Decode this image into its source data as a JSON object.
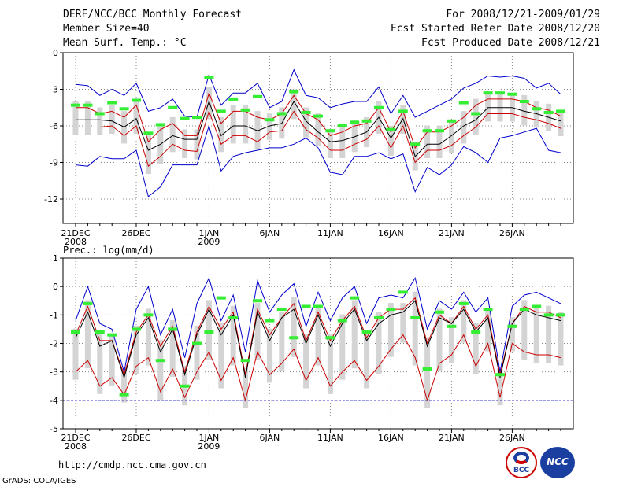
{
  "header": {
    "title": "DERF/NCC/BCC Monthly Forecast",
    "member_size": "Member Size=40",
    "variable1": "Mean Surf. Temp.: °C",
    "period": "For 2008/12/21-2009/01/29",
    "start": "Fcst Started Refer Date 2008/12/20",
    "produced": "Fcst Produced Date 2008/12/21"
  },
  "footer": {
    "url": "http://cmdp.ncc.cma.gov.cn",
    "grads": "GrADS: COLA/IGES",
    "logo_bcc": "BCC",
    "logo_ncc": "NCC"
  },
  "colors": {
    "max": "#0000cc",
    "min": "#0000cc",
    "spread": "#cc0000",
    "mean": "#000000",
    "obs": "#33ee33",
    "box": "#d4d4d4"
  },
  "chart_data": [
    {
      "type": "line",
      "title": "Mean Surf. Temp.: °C",
      "ylim": [
        -14,
        0
      ],
      "yticks": [
        0,
        -3,
        -6,
        -9,
        -12
      ],
      "xticks": [
        {
          "day": 0,
          "label": "21DEC",
          "sub": "2008"
        },
        {
          "day": 5,
          "label": "26DEC",
          "sub": ""
        },
        {
          "day": 11,
          "label": "1JAN",
          "sub": "2009"
        },
        {
          "day": 16,
          "label": "6JAN",
          "sub": ""
        },
        {
          "day": 21,
          "label": "11JAN",
          "sub": ""
        },
        {
          "day": 26,
          "label": "16JAN",
          "sub": ""
        },
        {
          "day": 31,
          "label": "21JAN",
          "sub": ""
        },
        {
          "day": 36,
          "label": "26JAN",
          "sub": ""
        }
      ],
      "series": [
        {
          "name": "max",
          "values": [
            -2.6,
            -2.7,
            -3.5,
            -3,
            -3.5,
            -2.5,
            -4.8,
            -4.5,
            -3.8,
            -5.2,
            -5.3,
            -1.8,
            -4.3,
            -3.3,
            -3.3,
            -2.5,
            -4.5,
            -4,
            -1.4,
            -3.5,
            -3.7,
            -4.5,
            -4.2,
            -4.0,
            -4.0,
            -2.8,
            -5.0,
            -3.5,
            -5.3,
            -4.8,
            -4.3,
            -3.8,
            -2.9,
            -2.5,
            -1.9,
            -2.0,
            -1.9,
            -2.1,
            -2.9,
            -2.5,
            -3.4
          ]
        },
        {
          "name": "spread_hi",
          "values": [
            -4.5,
            -4.5,
            -5.0,
            -4.8,
            -5.3,
            -4.3,
            -7.3,
            -6.3,
            -5.8,
            -6.8,
            -6.8,
            -3.3,
            -5.8,
            -4.8,
            -4.8,
            -5.3,
            -5.5,
            -5.0,
            -3.5,
            -5.0,
            -5.5,
            -6.8,
            -6.5,
            -6.0,
            -5.8,
            -4.5,
            -6.5,
            -4.8,
            -7.8,
            -6.5,
            -6.5,
            -6.0,
            -5.3,
            -4.3,
            -3.8,
            -3.8,
            -3.8,
            -4.0,
            -4.5,
            -4.7,
            -5.2
          ]
        },
        {
          "name": "mean",
          "values": [
            -5.5,
            -5.5,
            -5.5,
            -5.6,
            -6.1,
            -5.4,
            -8.0,
            -7.5,
            -6.8,
            -7.1,
            -7.1,
            -4.0,
            -6.8,
            -6.0,
            -6.0,
            -6.4,
            -6.0,
            -5.8,
            -4.0,
            -5.6,
            -6.5,
            -7.3,
            -7.2,
            -6.9,
            -6.5,
            -5.3,
            -7.0,
            -5.4,
            -8.5,
            -7.5,
            -7.5,
            -6.8,
            -6.0,
            -5.5,
            -4.5,
            -4.5,
            -4.5,
            -4.8,
            -5.0,
            -5.3,
            -5.6
          ]
        },
        {
          "name": "spread_lo",
          "values": [
            -6.1,
            -6.1,
            -6.1,
            -6.0,
            -6.8,
            -6.0,
            -9.3,
            -8.5,
            -7.5,
            -8.0,
            -8.1,
            -4.8,
            -7.5,
            -6.8,
            -6.8,
            -7.3,
            -6.5,
            -6.4,
            -4.8,
            -6.3,
            -7.0,
            -8.0,
            -8.0,
            -7.5,
            -7.1,
            -6.0,
            -7.8,
            -6.0,
            -9.0,
            -8.0,
            -8.0,
            -7.6,
            -6.8,
            -6.1,
            -5.0,
            -5.0,
            -5.0,
            -5.3,
            -5.5,
            -5.8,
            -6.2
          ]
        },
        {
          "name": "min",
          "values": [
            -9.2,
            -9.3,
            -8.5,
            -8.7,
            -8.7,
            -8.0,
            -11.8,
            -11.0,
            -9.2,
            -9.2,
            -9.2,
            -6.0,
            -9.7,
            -8.5,
            -8.2,
            -8.0,
            -7.8,
            -7.8,
            -7.5,
            -7.0,
            -7.8,
            -9.8,
            -10.0,
            -8.5,
            -8.5,
            -8.2,
            -8.7,
            -8.3,
            -11.4,
            -9.4,
            -10.0,
            -9.2,
            -7.7,
            -8.2,
            -9.0,
            -7.0,
            -6.8,
            -6.5,
            -6.2,
            -8.0,
            -8.2
          ]
        },
        {
          "name": "observed",
          "values": [
            -4.3,
            -4.3,
            -5.0,
            -4.1,
            -4.6,
            -3.9,
            -6.6,
            -5.9,
            -4.5,
            -5.4,
            -5.3,
            -2.0,
            -4.8,
            -3.8,
            -4.7,
            -3.6,
            -5.5,
            -5.0,
            -3.2,
            -4.9,
            -5.2,
            -6.4,
            -6.0,
            -5.7,
            -5.6,
            -4.5,
            -6.3,
            -4.8,
            -7.5,
            -6.4,
            -6.4,
            -5.6,
            -4.1,
            -5.0,
            -3.3,
            -3.3,
            -3.4,
            -4.0,
            -4.6,
            -4.9,
            -4.8
          ]
        }
      ]
    },
    {
      "type": "line",
      "title": "Prec.: log(mm/d)",
      "ylim": [
        -5,
        1
      ],
      "yticks": [
        1,
        0,
        -1,
        -2,
        -3,
        -4,
        -5
      ],
      "xticks": [
        {
          "day": 0,
          "label": "21DEC",
          "sub": "2008"
        },
        {
          "day": 5,
          "label": "26DEC",
          "sub": ""
        },
        {
          "day": 11,
          "label": "1JAN",
          "sub": "2009"
        },
        {
          "day": 16,
          "label": "6JAN",
          "sub": ""
        },
        {
          "day": 21,
          "label": "11JAN",
          "sub": ""
        },
        {
          "day": 26,
          "label": "16JAN",
          "sub": ""
        },
        {
          "day": 31,
          "label": "21JAN",
          "sub": ""
        },
        {
          "day": 36,
          "label": "26JAN",
          "sub": ""
        }
      ],
      "series": [
        {
          "name": "max",
          "values": [
            -1.2,
            0,
            -1.3,
            -1.5,
            -3.0,
            -0.8,
            0.0,
            -1.7,
            -0.8,
            -2.5,
            -0.6,
            0.3,
            -1.2,
            -0.3,
            -2.3,
            0.2,
            -0.9,
            -0.3,
            0.1,
            -1.4,
            -0.2,
            -1.2,
            -0.4,
            0.0,
            -1.3,
            -0.4,
            -0.3,
            -0.4,
            0.3,
            -1.5,
            -0.5,
            -0.8,
            -0.2,
            -0.9,
            -0.4,
            -3.0,
            -0.7,
            -0.3,
            -0.2,
            -0.4,
            -0.6
          ]
        },
        {
          "name": "spread_hi",
          "values": [
            -1.7,
            -0.7,
            -1.9,
            -1.9,
            -3.1,
            -1.6,
            -1.0,
            -2.1,
            -1.4,
            -3.0,
            -1.6,
            -0.7,
            -1.5,
            -0.9,
            -3.1,
            -0.8,
            -1.7,
            -1.1,
            -0.6,
            -1.9,
            -0.9,
            -1.9,
            -1.2,
            -0.7,
            -1.8,
            -1.1,
            -0.8,
            -0.8,
            -0.4,
            -2.0,
            -1.0,
            -1.3,
            -0.7,
            -1.5,
            -1.0,
            -3.1,
            -1.3,
            -0.7,
            -0.9,
            -0.9,
            -1.1
          ]
        },
        {
          "name": "mean",
          "values": [
            -1.8,
            -0.9,
            -2.1,
            -1.9,
            -3.2,
            -1.7,
            -1.1,
            -2.3,
            -1.5,
            -3.1,
            -1.7,
            -0.8,
            -1.7,
            -1.0,
            -3.2,
            -0.9,
            -1.9,
            -1.1,
            -0.8,
            -2.0,
            -1.0,
            -2.1,
            -1.3,
            -0.8,
            -1.9,
            -1.3,
            -1.0,
            -0.9,
            -0.5,
            -2.1,
            -1.1,
            -1.3,
            -0.8,
            -1.6,
            -1.1,
            -3.2,
            -1.3,
            -0.8,
            -1.0,
            -1.1,
            -1.2
          ]
        },
        {
          "name": "spread_lo",
          "values": [
            -3.0,
            -2.6,
            -3.5,
            -3.2,
            -3.8,
            -2.8,
            -2.5,
            -3.7,
            -2.9,
            -3.9,
            -3.0,
            -2.3,
            -3.3,
            -2.5,
            -4.0,
            -2.3,
            -3.1,
            -2.7,
            -2.2,
            -3.3,
            -2.5,
            -3.5,
            -3.0,
            -2.6,
            -3.3,
            -2.8,
            -2.2,
            -1.7,
            -2.5,
            -4.0,
            -2.7,
            -2.4,
            -1.7,
            -2.8,
            -2.0,
            -3.9,
            -2.0,
            -2.3,
            -2.4,
            -2.4,
            -2.5
          ]
        },
        {
          "name": "min",
          "values": [
            -4.0,
            -4.0,
            -4.0,
            -4.0,
            -4.0,
            -4.0,
            -4.0,
            -4.0,
            -4.0,
            -4.0,
            -4.0,
            -4.0,
            -4.0,
            -4.0,
            -4.0,
            -4.0,
            -4.0,
            -4.0,
            -4.0,
            -4.0,
            -4.0,
            -4.0,
            -4.0,
            -4.0,
            -4.0,
            -4.0,
            -4.0,
            -4.0,
            -4.0,
            -4.0,
            -4.0,
            -4.0,
            -4.0,
            -4.0,
            -4.0,
            -4.0,
            -4.0,
            -4.0,
            -4.0,
            -4.0,
            -4.0
          ]
        },
        {
          "name": "observed",
          "values": [
            -1.6,
            -0.6,
            -1.6,
            -1.7,
            -3.8,
            -1.5,
            -1.0,
            -2.6,
            -1.5,
            -3.5,
            -2.0,
            -1.6,
            -0.4,
            -1.1,
            -2.6,
            -0.5,
            -1.2,
            -0.8,
            -1.8,
            -0.7,
            -0.7,
            -1.8,
            -1.2,
            -0.4,
            -1.6,
            -1.1,
            -0.8,
            -0.2,
            -1.1,
            -2.9,
            -0.9,
            -1.4,
            -0.6,
            -1.6,
            -0.8,
            -3.1,
            -1.4,
            -0.8,
            -0.7,
            -1.0,
            -1.0
          ]
        }
      ]
    }
  ]
}
